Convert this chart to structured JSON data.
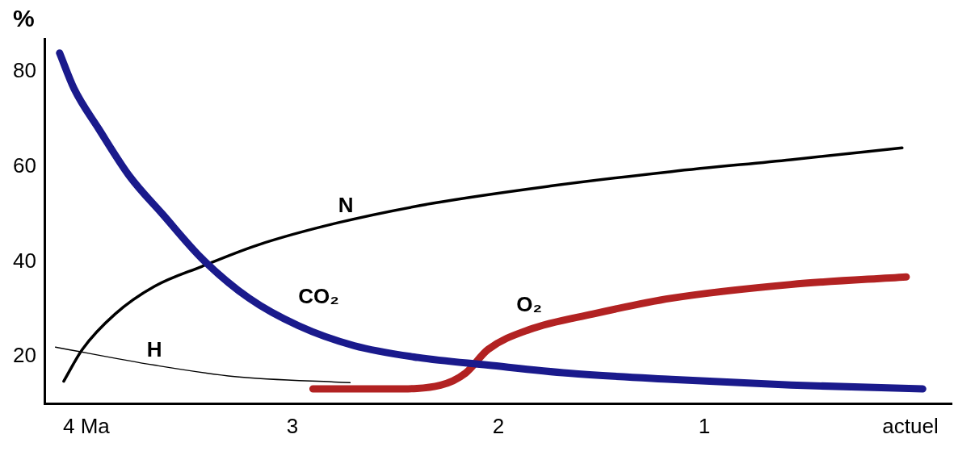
{
  "chart_data": {
    "type": "line",
    "ylabel": "%",
    "xlim": [
      4.2,
      -0.2
    ],
    "ylim": [
      10,
      87
    ],
    "xticks": [
      {
        "value": 4,
        "label": "4 Ma"
      },
      3,
      2,
      1,
      {
        "value": 0,
        "label": "actuel"
      }
    ],
    "yticks": [
      20,
      40,
      60,
      80
    ],
    "grid": false,
    "legend": false,
    "marker": "none",
    "line_style": "solid",
    "series": [
      {
        "name": "CO₂",
        "color": "#1a1a8c",
        "x": [
          4.13,
          4.06,
          3.94,
          3.79,
          3.63,
          3.44,
          3.21,
          2.97,
          2.7,
          2.39,
          2.05,
          1.66,
          1.16,
          0.58,
          -0.06
        ],
        "values": [
          84,
          76.5,
          68,
          58,
          50,
          40.7,
          32.3,
          26.5,
          22.3,
          19.8,
          18.2,
          16.5,
          15.2,
          14,
          13.2
        ]
      },
      {
        "name": "N",
        "color": "#000000",
        "x": [
          4.11,
          4.02,
          3.86,
          3.67,
          3.44,
          3.17,
          2.78,
          2.32,
          1.74,
          1.16,
          0.58,
          0.04
        ],
        "values": [
          14.8,
          21.5,
          29,
          34.8,
          39,
          43.5,
          48.2,
          52.3,
          56,
          59,
          61.5,
          64
        ]
      },
      {
        "name": "H",
        "color": "#000000",
        "x": [
          4.15,
          3.67,
          3.28,
          2.72
        ],
        "values": [
          22,
          18.2,
          15.8,
          14.5
        ]
      },
      {
        "name": "O₂",
        "color": "#b22222",
        "x": [
          2.9,
          2.51,
          2.28,
          2.16,
          2.05,
          1.85,
          1.54,
          1.16,
          0.58,
          0.02
        ],
        "values": [
          13.2,
          13.2,
          14,
          16.5,
          21.5,
          25.7,
          29,
          32.3,
          35.2,
          36.8
        ]
      }
    ]
  }
}
